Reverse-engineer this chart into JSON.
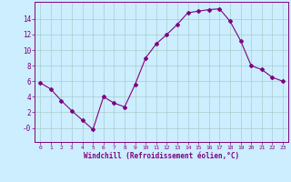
{
  "x": [
    0,
    1,
    2,
    3,
    4,
    5,
    6,
    7,
    8,
    9,
    10,
    11,
    12,
    13,
    14,
    15,
    16,
    17,
    18,
    19,
    20,
    21,
    22,
    23
  ],
  "y": [
    5.8,
    5.0,
    3.5,
    2.2,
    1.0,
    -0.2,
    4.0,
    3.2,
    2.7,
    5.6,
    9.0,
    10.8,
    12.0,
    13.3,
    14.8,
    15.0,
    15.2,
    15.3,
    13.7,
    11.2,
    8.0,
    7.5,
    6.5,
    6.0
  ],
  "line_color": "#800080",
  "marker": "D",
  "marker_size": 2,
  "bg_color": "#cceeff",
  "grid_color": "#aacccc",
  "xlabel": "Windchill (Refroidissement éolien,°C)",
  "xlim": [
    -0.5,
    23.5
  ],
  "ylim": [
    -1.8,
    16.2
  ],
  "yticks": [
    0,
    2,
    4,
    6,
    8,
    10,
    12,
    14
  ],
  "ytick_labels": [
    "-0",
    "2",
    "4",
    "6",
    "8",
    "10",
    "12",
    "14"
  ],
  "xticks": [
    0,
    1,
    2,
    3,
    4,
    5,
    6,
    7,
    8,
    9,
    10,
    11,
    12,
    13,
    14,
    15,
    16,
    17,
    18,
    19,
    20,
    21,
    22,
    23
  ],
  "axis_color": "#800080",
  "tick_color": "#800080",
  "label_color": "#800080",
  "xtick_fontsize": 4.5,
  "ytick_fontsize": 5.5,
  "xlabel_fontsize": 5.5
}
